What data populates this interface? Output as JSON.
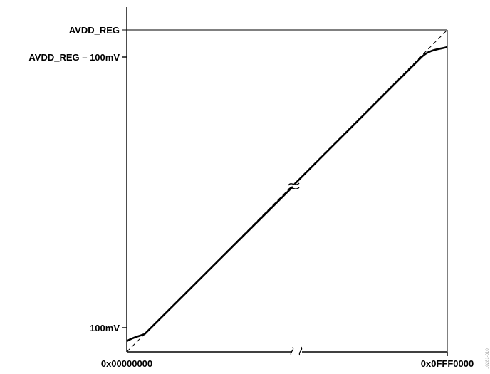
{
  "chart_data": {
    "type": "line",
    "x_tick_labels": {
      "start": "0x00000000",
      "end": "0x0FFF0000"
    },
    "y_tick_labels": {
      "top": "AVDD_REG",
      "upper": "AVDD_REG – 100mV",
      "lower": "100mV"
    },
    "series": [
      {
        "style": "solid",
        "description_role": "actual transfer characteristic"
      },
      {
        "style": "dashed",
        "description_role": "ideal transfer characteristic"
      }
    ],
    "axis_breaks": [
      "x-axis midpoint",
      "curve midpoint"
    ],
    "grid": false
  },
  "watermark_text": "10281-010",
  "colors": {
    "line": "#000000",
    "background": "#ffffff",
    "watermark": "#9a9a9a"
  }
}
